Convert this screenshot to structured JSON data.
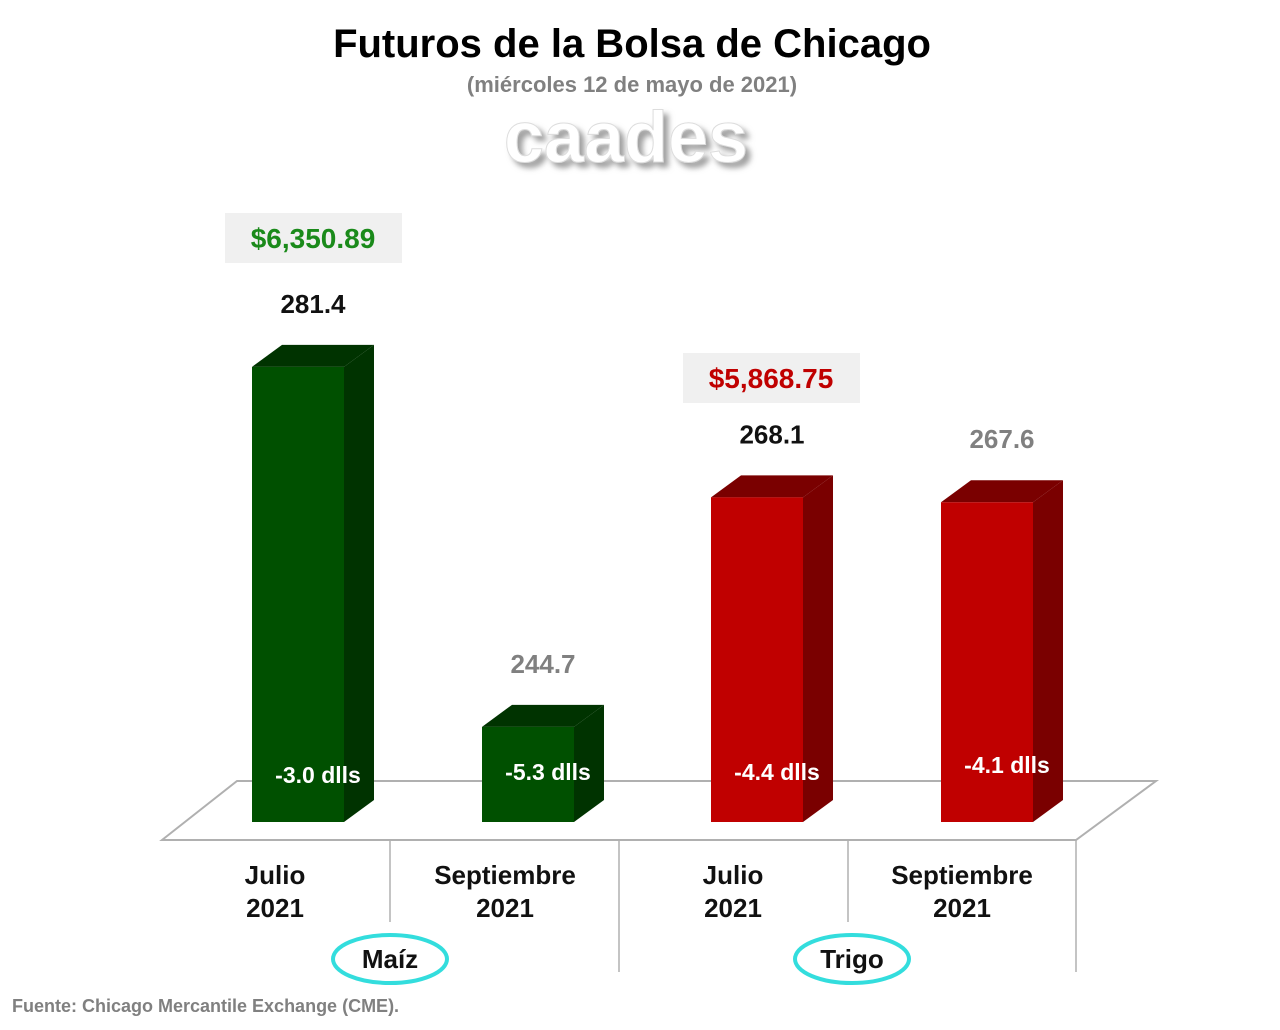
{
  "title": "Futuros de la Bolsa de Chicago",
  "subtitle": "(miércoles 12 de mayo de 2021)",
  "logo_text": "caades",
  "source": "Fuente: Chicago Mercantile Exchange (CME).",
  "colors": {
    "maiz_front": "#005000",
    "maiz_side": "#003300",
    "trigo_front": "#c00000",
    "trigo_side": "#7a0000",
    "highlight_oval": "#33dddd",
    "green_text": "#1a8a1a",
    "red_text": "#c00000",
    "gray_text": "#808080"
  },
  "chart_data": {
    "type": "bar",
    "style": "3d",
    "categories": [
      "Julio 2021",
      "Septiembre 2021",
      "Julio 2021",
      "Septiembre 2021"
    ],
    "category_lines": [
      [
        "Julio",
        "2021"
      ],
      [
        "Septiembre",
        "2021"
      ],
      [
        "Julio",
        "2021"
      ],
      [
        "Septiembre",
        "2021"
      ]
    ],
    "groups": [
      {
        "name": "Maíz",
        "price_label": "$6,350.89"
      },
      {
        "name": "Trigo",
        "price_label": "$5,868.75"
      }
    ],
    "values": [
      281.4,
      244.7,
      268.1,
      267.6
    ],
    "value_labels": [
      "281.4",
      "244.7",
      "268.1",
      "267.6"
    ],
    "change_labels": [
      "-3.0 dlls",
      "-5.3 dlls",
      "-4.4 dlls",
      "-4.1 dlls"
    ],
    "group_of_bar": [
      0,
      0,
      1,
      1
    ],
    "label_highlight": [
      "dark",
      "gray",
      "dark",
      "gray"
    ],
    "ylim": [
      235,
      285
    ],
    "grid": false,
    "legend": "none"
  }
}
